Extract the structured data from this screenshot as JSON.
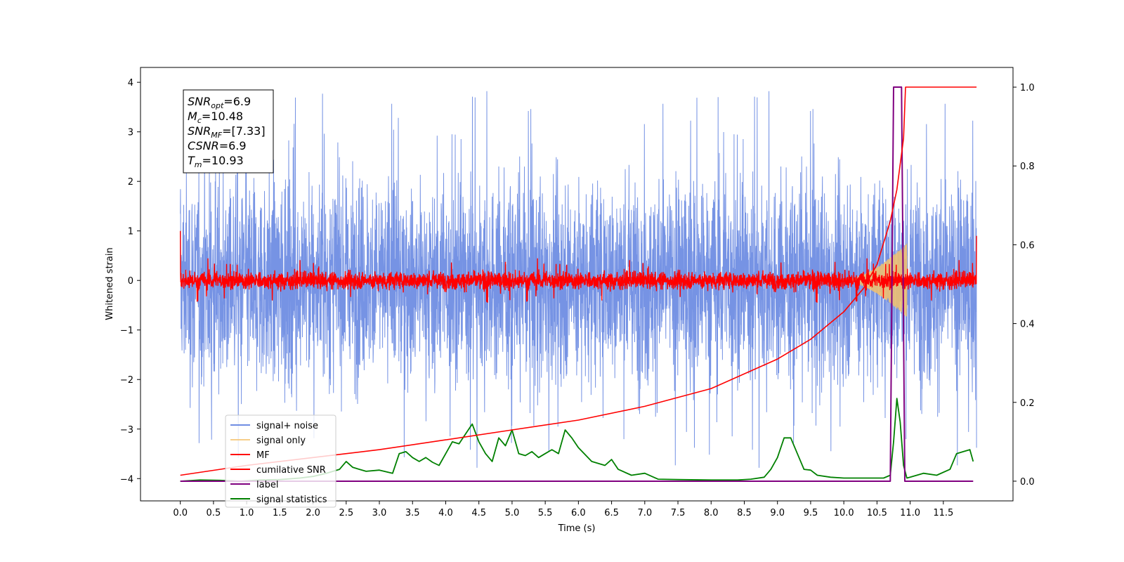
{
  "chart_data": {
    "type": "line",
    "xlabel": "Time (s)",
    "ylabel_left": "Whitened strain",
    "ylabel_right": "",
    "xlim": [
      -0.6,
      12.55
    ],
    "ylim_left": [
      -4.45,
      4.3
    ],
    "ylim_right": [
      -0.05,
      1.05
    ],
    "x_ticks": [
      "0.0",
      "0.5",
      "1.0",
      "1.5",
      "2.0",
      "2.5",
      "3.0",
      "3.5",
      "4.0",
      "4.5",
      "5.0",
      "5.5",
      "6.0",
      "6.5",
      "7.0",
      "7.5",
      "8.0",
      "8.5",
      "9.0",
      "9.5",
      "10.0",
      "10.5",
      "11.0",
      "11.5"
    ],
    "y_ticks_left": [
      "4",
      "3",
      "2",
      "1",
      "0",
      "−1",
      "−2",
      "−3",
      "−4"
    ],
    "y_ticks_right": [
      "1.0",
      "0.8",
      "0.6",
      "0.4",
      "0.2",
      "0.0"
    ],
    "grid": false,
    "legend_position": "lower-left",
    "info_box": [
      {
        "main": "SNR",
        "sub": "opt",
        "value": "=6.9"
      },
      {
        "main": "M",
        "sub": "c",
        "value": "=10.48"
      },
      {
        "main": "SNR",
        "sub": "MF",
        "value": "=[7.33]"
      },
      {
        "main": "CSNR",
        "sub": "",
        "value": "=6.9"
      },
      {
        "main": "T",
        "sub": "m",
        "value": "=10.93"
      }
    ],
    "series": [
      {
        "name": "signal+ noise",
        "axis": "left",
        "color": "#6f8de3",
        "style": "noise",
        "x_range": [
          0.0,
          12.0
        ],
        "envelope": [
          -2.6,
          2.6
        ],
        "peak_values": [
          3.93,
          -4.1,
          -3.75,
          3.87,
          3.75,
          -3.65
        ]
      },
      {
        "name": "signal only",
        "axis": "left",
        "color": "#f5c26b",
        "style": "chirp",
        "x_range": [
          10.0,
          10.95
        ],
        "amplitude_peak": 0.75
      },
      {
        "name": "MF",
        "axis": "left",
        "color": "#ff0000",
        "style": "noise",
        "x_range": [
          0.0,
          12.0
        ],
        "envelope": [
          -0.25,
          0.25
        ],
        "start_value": 1.0,
        "end_value": 0.9
      },
      {
        "name": "cumilative SNR",
        "axis": "right",
        "color": "#ff0000",
        "x": [
          0.0,
          1.0,
          2.0,
          3.0,
          4.0,
          5.0,
          6.0,
          7.0,
          8.0,
          9.0,
          9.5,
          10.0,
          10.3,
          10.5,
          10.7,
          10.8,
          10.9,
          10.93,
          11.0,
          12.0
        ],
        "values": [
          0.015,
          0.04,
          0.06,
          0.08,
          0.105,
          0.13,
          0.155,
          0.19,
          0.235,
          0.31,
          0.36,
          0.43,
          0.49,
          0.55,
          0.66,
          0.74,
          0.87,
          1.0,
          1.0,
          1.0
        ]
      },
      {
        "name": "label",
        "axis": "right",
        "color": "#800080",
        "x": [
          0.0,
          10.7,
          10.75,
          10.87,
          10.92,
          11.95
        ],
        "values": [
          0.0,
          0.0,
          1.0,
          1.0,
          0.0,
          0.0
        ]
      },
      {
        "name": "signal statistics",
        "axis": "right",
        "color": "#008000",
        "x": [
          0.0,
          0.3,
          0.6,
          0.9,
          1.2,
          1.5,
          1.8,
          2.0,
          2.2,
          2.4,
          2.5,
          2.6,
          2.8,
          3.0,
          3.2,
          3.3,
          3.4,
          3.5,
          3.6,
          3.7,
          3.8,
          3.9,
          4.0,
          4.1,
          4.2,
          4.3,
          4.4,
          4.5,
          4.6,
          4.7,
          4.8,
          4.9,
          5.0,
          5.1,
          5.2,
          5.3,
          5.4,
          5.5,
          5.6,
          5.7,
          5.8,
          5.9,
          6.0,
          6.2,
          6.4,
          6.5,
          6.6,
          6.8,
          7.0,
          7.2,
          7.5,
          8.0,
          8.4,
          8.6,
          8.8,
          8.9,
          9.0,
          9.1,
          9.2,
          9.3,
          9.4,
          9.5,
          9.6,
          9.8,
          10.0,
          10.3,
          10.6,
          10.7,
          10.75,
          10.8,
          10.85,
          10.9,
          10.95,
          11.0,
          11.2,
          11.4,
          11.6,
          11.7,
          11.8,
          11.9,
          11.95
        ],
        "values": [
          0.0,
          0.003,
          0.002,
          0.0,
          0.003,
          0.004,
          0.008,
          0.012,
          0.02,
          0.03,
          0.05,
          0.035,
          0.025,
          0.028,
          0.02,
          0.07,
          0.075,
          0.06,
          0.05,
          0.06,
          0.048,
          0.04,
          0.07,
          0.1,
          0.095,
          0.12,
          0.145,
          0.1,
          0.07,
          0.05,
          0.11,
          0.09,
          0.13,
          0.07,
          0.065,
          0.075,
          0.06,
          0.07,
          0.08,
          0.07,
          0.13,
          0.11,
          0.085,
          0.05,
          0.04,
          0.055,
          0.03,
          0.015,
          0.02,
          0.005,
          0.004,
          0.003,
          0.003,
          0.005,
          0.01,
          0.03,
          0.06,
          0.11,
          0.11,
          0.07,
          0.03,
          0.028,
          0.015,
          0.01,
          0.008,
          0.008,
          0.008,
          0.015,
          0.1,
          0.21,
          0.15,
          0.04,
          0.008,
          0.01,
          0.02,
          0.015,
          0.03,
          0.07,
          0.075,
          0.08,
          0.05
        ]
      }
    ]
  }
}
